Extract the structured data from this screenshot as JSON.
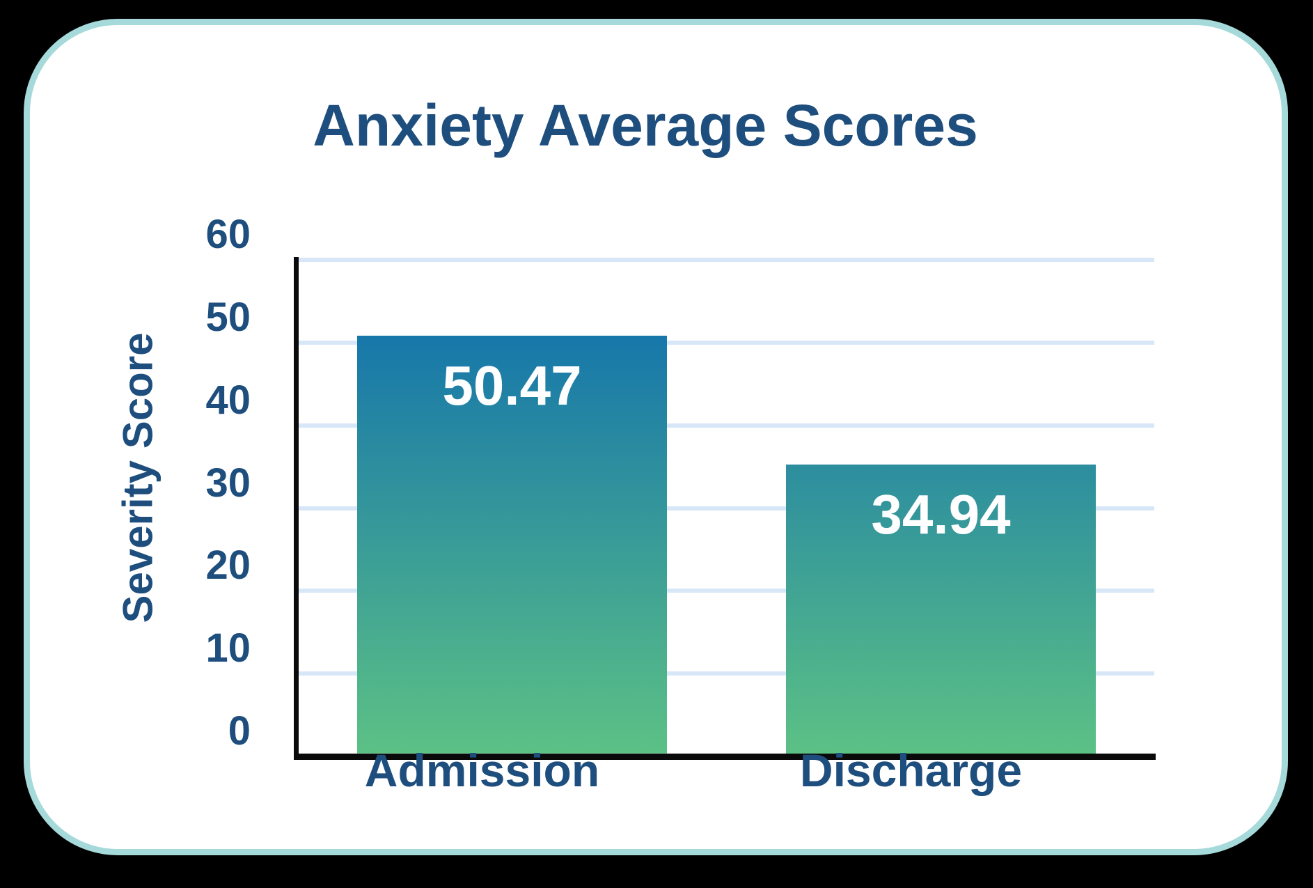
{
  "card": {
    "background": "#ffffff",
    "border_color": "#a6d9da",
    "page_background": "#000000"
  },
  "chart_data": {
    "type": "bar",
    "title": "Anxiety Average Scores",
    "xlabel": "",
    "ylabel": "Severity Score",
    "categories": [
      "Admission",
      "Discharge"
    ],
    "values": [
      50.47,
      34.94
    ],
    "value_labels": [
      "50.47",
      "34.94"
    ],
    "ylim": [
      0,
      60
    ],
    "yticks": [
      0,
      10,
      20,
      30,
      40,
      50,
      60
    ],
    "grid": true,
    "legend": "none",
    "colors": {
      "text": "#1e4e7d",
      "gridline": "#d7e7f8",
      "axis": "#0a0a0a",
      "bar_gradient_top": "#0a69b1",
      "bar_gradient_bottom": "#5cc185",
      "value_label": "#ffffff"
    }
  }
}
